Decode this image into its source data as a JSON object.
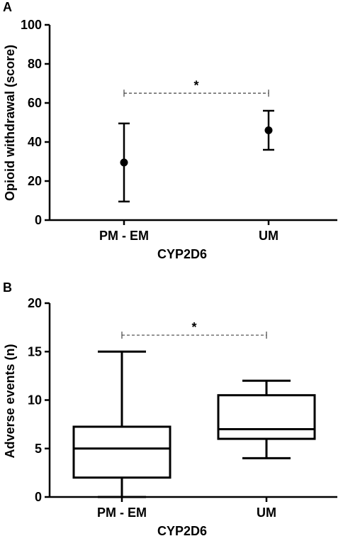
{
  "figure": {
    "panel_a_letter": "A",
    "panel_b_letter": "B"
  },
  "chart_data": [
    {
      "type": "scatter",
      "subtype": "mean-with-error-bars",
      "panel": "A",
      "title": "",
      "xlabel": "CYP2D6",
      "ylabel": "Opioid withdrawal (score)",
      "categories": [
        "PM - EM",
        "UM"
      ],
      "ylim": [
        0,
        100
      ],
      "yticks": [
        "0",
        "20",
        "40",
        "60",
        "80",
        "100"
      ],
      "points": [
        {
          "category": "PM - EM",
          "mean": 29.5,
          "lower": 9.5,
          "upper": 49.5
        },
        {
          "category": "UM",
          "mean": 46.0,
          "lower": 36.0,
          "upper": 56.0
        }
      ],
      "annotation": {
        "text": "*",
        "between": [
          "PM - EM",
          "UM"
        ],
        "y": 65
      },
      "grid": false,
      "color": "#000000"
    },
    {
      "type": "box",
      "panel": "B",
      "title": "",
      "xlabel": "CYP2D6",
      "ylabel": "Adverse events (n)",
      "categories": [
        "PM - EM",
        "UM"
      ],
      "ylim": [
        0,
        20
      ],
      "yticks": [
        "0",
        "5",
        "10",
        "15",
        "20"
      ],
      "boxes": [
        {
          "category": "PM - EM",
          "min": 0,
          "q1": 2,
          "median": 5,
          "q3": 7.25,
          "max": 15
        },
        {
          "category": "UM",
          "min": 4,
          "q1": 6,
          "median": 7,
          "q3": 10.5,
          "max": 12
        }
      ],
      "annotation": {
        "text": "*",
        "between": [
          "PM - EM",
          "UM"
        ],
        "y": 16.7
      },
      "grid": false,
      "color": "#000000"
    }
  ]
}
